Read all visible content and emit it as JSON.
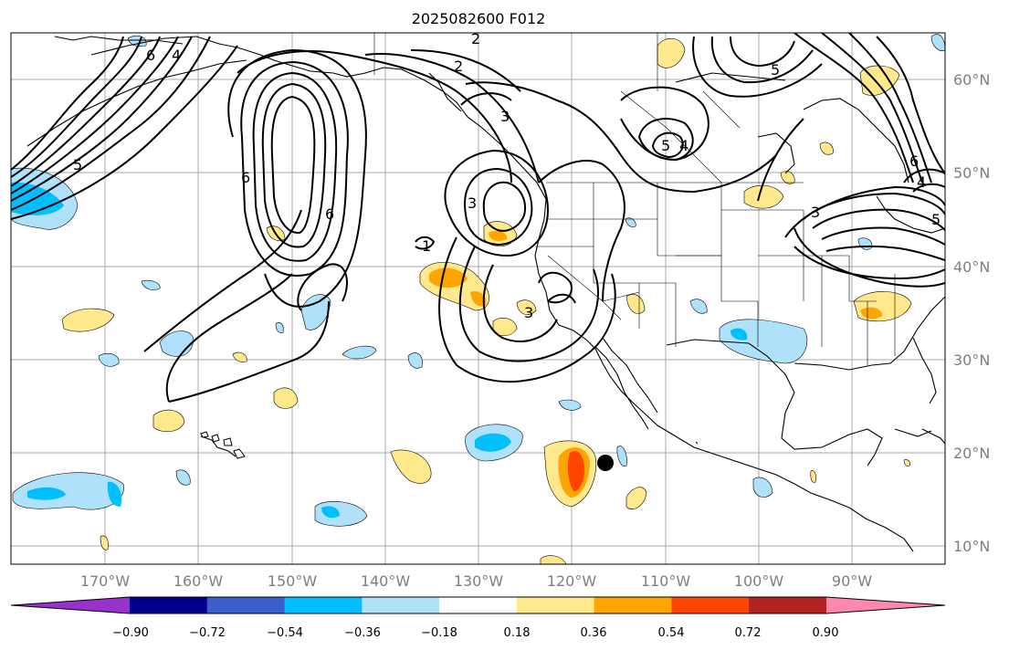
{
  "title": "2025082600 F012",
  "map": {
    "lat_labels": [
      "60°N",
      "50°N",
      "40°N",
      "30°N",
      "20°N",
      "10°N"
    ],
    "lon_labels": [
      "170°W",
      "160°W",
      "150°W",
      "140°W",
      "130°W",
      "120°W",
      "110°W",
      "100°W",
      "90°W"
    ],
    "contour_labels": [
      "2",
      "3",
      "3",
      "3",
      "4",
      "5",
      "5",
      "6",
      "6",
      "6",
      "4",
      "5",
      "6",
      "1",
      "2",
      "3",
      "4",
      "5"
    ]
  },
  "colorbar": {
    "labels": [
      "−0.90",
      "−0.72",
      "−0.54",
      "−0.36",
      "−0.18",
      "0.18",
      "0.36",
      "0.54",
      "0.72",
      "0.90"
    ],
    "colors": [
      "#9932cc",
      "#00008b",
      "#3a5fcd",
      "#00bfff",
      "#afe1fa",
      "#ffffff",
      "#ffe98c",
      "#ffa500",
      "#ff4500",
      "#b22222",
      "#ff87b0"
    ]
  }
}
